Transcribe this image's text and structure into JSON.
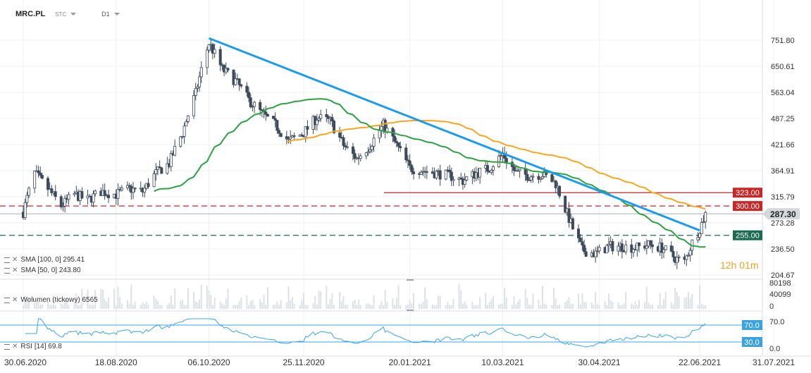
{
  "header": {
    "symbol": "MRC.PL",
    "mode": "STC",
    "timeframe": "D1"
  },
  "timer": "12h 01m",
  "legends": {
    "sma100": "SMA [100, 0] 295.41",
    "sma50": "SMA [50, 0] 243.80",
    "volume": "Wolumen (tickowy) 6565",
    "rsi": "RSI [14] 69.8"
  },
  "chart_data": {
    "type": "candlestick",
    "price_axis": {
      "labels": [
        "751.80",
        "650.61",
        "563.04",
        "487.25",
        "421.66",
        "364.91",
        "315.79",
        "273.28",
        "236.50",
        "204.67"
      ],
      "scale": "log"
    },
    "volume_axis": {
      "labels": [
        "80198",
        "40099",
        "0"
      ]
    },
    "rsi_axis": {
      "labels": [
        "70.0",
        "0.0"
      ]
    },
    "x_labels": [
      "30.06.2020",
      "18.08.2020",
      "06.10.2020",
      "25.11.2020",
      "20.01.2021",
      "10.03.2021",
      "30.04.2021",
      "22.06.2021",
      "31.07.2021"
    ],
    "levels": [
      {
        "label": "323.00",
        "value": 323,
        "color": "#c62828",
        "style": "solid"
      },
      {
        "label": "300.00",
        "value": 300,
        "color": "#c62828",
        "style": "dashed"
      },
      {
        "label": "255.00",
        "value": 255,
        "color": "#1b6b52",
        "style": "dashed"
      }
    ],
    "current_price": {
      "label": "287.30",
      "value": 287.3
    },
    "rsi_levels": [
      {
        "label": "70.0",
        "value": 70
      },
      {
        "label": "30.0",
        "value": 30
      }
    ],
    "rsi_value": 69.8,
    "sma100": 295.41,
    "sma50": 243.8,
    "volume": 6565,
    "trendline": {
      "start_date": "06.10.2020",
      "start": 760,
      "end_date": "22.06.2021",
      "end": 262
    }
  },
  "colors": {
    "up": "#ffffff",
    "down": "#3d4a59",
    "sma100": "#f5a623",
    "sma50": "#2ea043",
    "trend": "#1e9be9",
    "rsi": "#3ba4e0"
  }
}
